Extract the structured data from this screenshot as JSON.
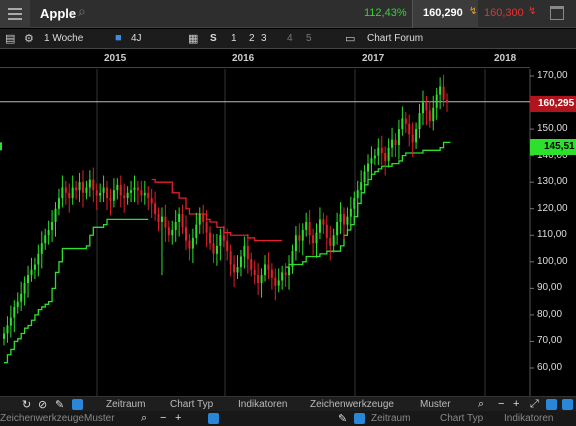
{
  "header": {
    "instrument": "Apple",
    "change_pct": "112,43%",
    "bid": "160,290",
    "ask": "160,300"
  },
  "toolbar": {
    "interval": "1 Woche",
    "period": "4J",
    "s_label": "S",
    "layout_1": "1",
    "layout_2": "2",
    "layout_3": "3",
    "layout_4": "4",
    "layout_5": "5",
    "forum": "Chart Forum"
  },
  "chart_data": {
    "type": "candlestick",
    "x_axis": {
      "labels": [
        "2015",
        "2016",
        "2017",
        "2018"
      ]
    },
    "y_axis": {
      "ticks": [
        "170,00",
        "160,00",
        "150,00",
        "140,00",
        "130,00",
        "120,00",
        "110,00",
        "100,00",
        "90,00",
        "80,00",
        "70,00",
        "60,00"
      ],
      "range": [
        60,
        170
      ]
    },
    "last_price_label": "160,295",
    "indicator_label": "145,51",
    "price_line": 160.3,
    "closes": [
      73,
      76,
      79,
      83,
      85,
      88,
      92,
      95,
      97,
      99,
      103,
      107,
      110,
      112,
      115,
      120,
      124,
      128,
      126,
      124,
      128,
      127,
      130,
      126,
      128,
      131,
      127,
      125,
      126,
      128,
      124,
      123,
      127,
      129,
      125,
      124,
      126,
      127,
      128,
      127,
      125,
      126,
      124,
      122,
      118,
      115,
      117,
      113,
      110,
      112,
      115,
      118,
      113,
      108,
      105,
      109,
      114,
      118,
      115,
      111,
      107,
      103,
      106,
      110,
      108,
      104,
      99,
      96,
      98,
      102,
      106,
      101,
      97,
      95,
      92,
      95,
      99,
      97,
      94,
      91,
      93,
      96,
      95,
      98,
      104,
      110,
      108,
      112,
      115,
      110,
      107,
      111,
      116,
      114,
      109,
      106,
      110,
      115,
      118,
      114,
      117,
      120,
      124,
      127,
      130,
      134,
      137,
      139,
      140,
      143,
      141,
      138,
      143,
      146,
      144,
      150,
      154,
      152,
      148,
      145,
      150,
      156,
      160,
      157,
      153,
      158,
      163,
      166,
      161,
      160
    ],
    "trailing_stop_red": [
      null,
      null,
      null,
      null,
      null,
      null,
      null,
      null,
      null,
      null,
      null,
      null,
      null,
      null,
      null,
      null,
      null,
      null,
      null,
      null,
      null,
      null,
      null,
      null,
      null,
      null,
      null,
      null,
      null,
      null,
      null,
      null,
      null,
      null,
      null,
      null,
      null,
      null,
      null,
      null,
      null,
      null,
      null,
      131,
      130,
      130,
      130,
      130,
      130,
      126,
      126,
      124,
      124,
      120,
      118,
      118,
      118,
      118,
      118,
      116,
      115,
      115,
      113,
      113,
      111,
      111,
      110,
      110,
      110,
      110,
      110,
      109,
      109,
      108,
      108,
      108,
      108,
      108,
      108,
      108,
      108,
      108,
      null,
      null,
      null,
      null,
      null,
      null,
      null,
      null,
      null,
      null,
      null,
      null,
      null,
      null,
      null,
      null,
      null,
      null,
      null,
      null,
      null,
      null,
      null,
      null,
      null,
      null,
      null,
      null,
      null,
      null,
      null,
      null,
      null,
      null,
      null,
      null,
      null,
      null,
      null,
      null,
      null,
      null,
      null,
      null,
      null,
      null,
      null,
      null
    ],
    "trailing_stop_green": [
      62,
      65,
      67,
      70,
      71,
      73,
      75,
      76,
      78,
      80,
      82,
      83,
      84,
      85,
      90,
      96,
      100,
      105,
      105,
      105,
      105,
      105,
      105,
      105,
      106,
      110,
      113,
      113,
      113,
      114,
      116,
      116,
      116,
      116,
      116,
      116,
      116,
      116,
      116,
      116,
      116,
      116,
      116,
      null,
      null,
      null,
      null,
      null,
      null,
      null,
      null,
      null,
      null,
      null,
      null,
      null,
      null,
      null,
      null,
      null,
      null,
      null,
      null,
      null,
      null,
      null,
      null,
      null,
      null,
      null,
      null,
      null,
      null,
      null,
      null,
      null,
      null,
      null,
      null,
      null,
      null,
      null,
      98,
      99,
      99,
      99,
      99,
      100,
      102,
      102,
      102,
      102,
      103,
      103,
      104,
      104,
      104,
      104,
      106,
      110,
      112,
      114,
      117,
      122,
      126,
      129,
      131,
      133,
      134,
      135,
      136,
      136,
      136,
      137,
      137,
      138,
      140,
      141,
      141,
      141,
      141,
      141,
      142,
      142,
      142,
      142,
      142,
      143,
      145,
      145,
      145
    ],
    "outlier_spike": {
      "index": 46,
      "low": 95
    }
  },
  "bottom": {
    "zeitraum": "Zeitraum",
    "chart_typ": "Chart Typ",
    "indikatoren": "Indikatoren",
    "zeichenwerkzeuge": "Zeichenwerkzeuge",
    "muster": "Muster",
    "row2_zeichenwerkzeuge": "Zeichenwerkzeuge",
    "row2_muster": "Muster",
    "row2_chart_typ": "Chart Typ",
    "row2_indikatoren": "Indikatoren"
  },
  "colors": {
    "up": "#2ee02e",
    "down": "#e0202a",
    "trailing_red": "#e0202a",
    "trailing_green": "#2ee02e",
    "grid": "#333333",
    "price_line": "#bbbbbb",
    "accent_blue": "#2a86d8"
  },
  "icons": {
    "menu": "hamburger-icon",
    "search": "search-icon",
    "window": "window-icon",
    "lock": "lock-icon",
    "forum": "chat-icon"
  }
}
